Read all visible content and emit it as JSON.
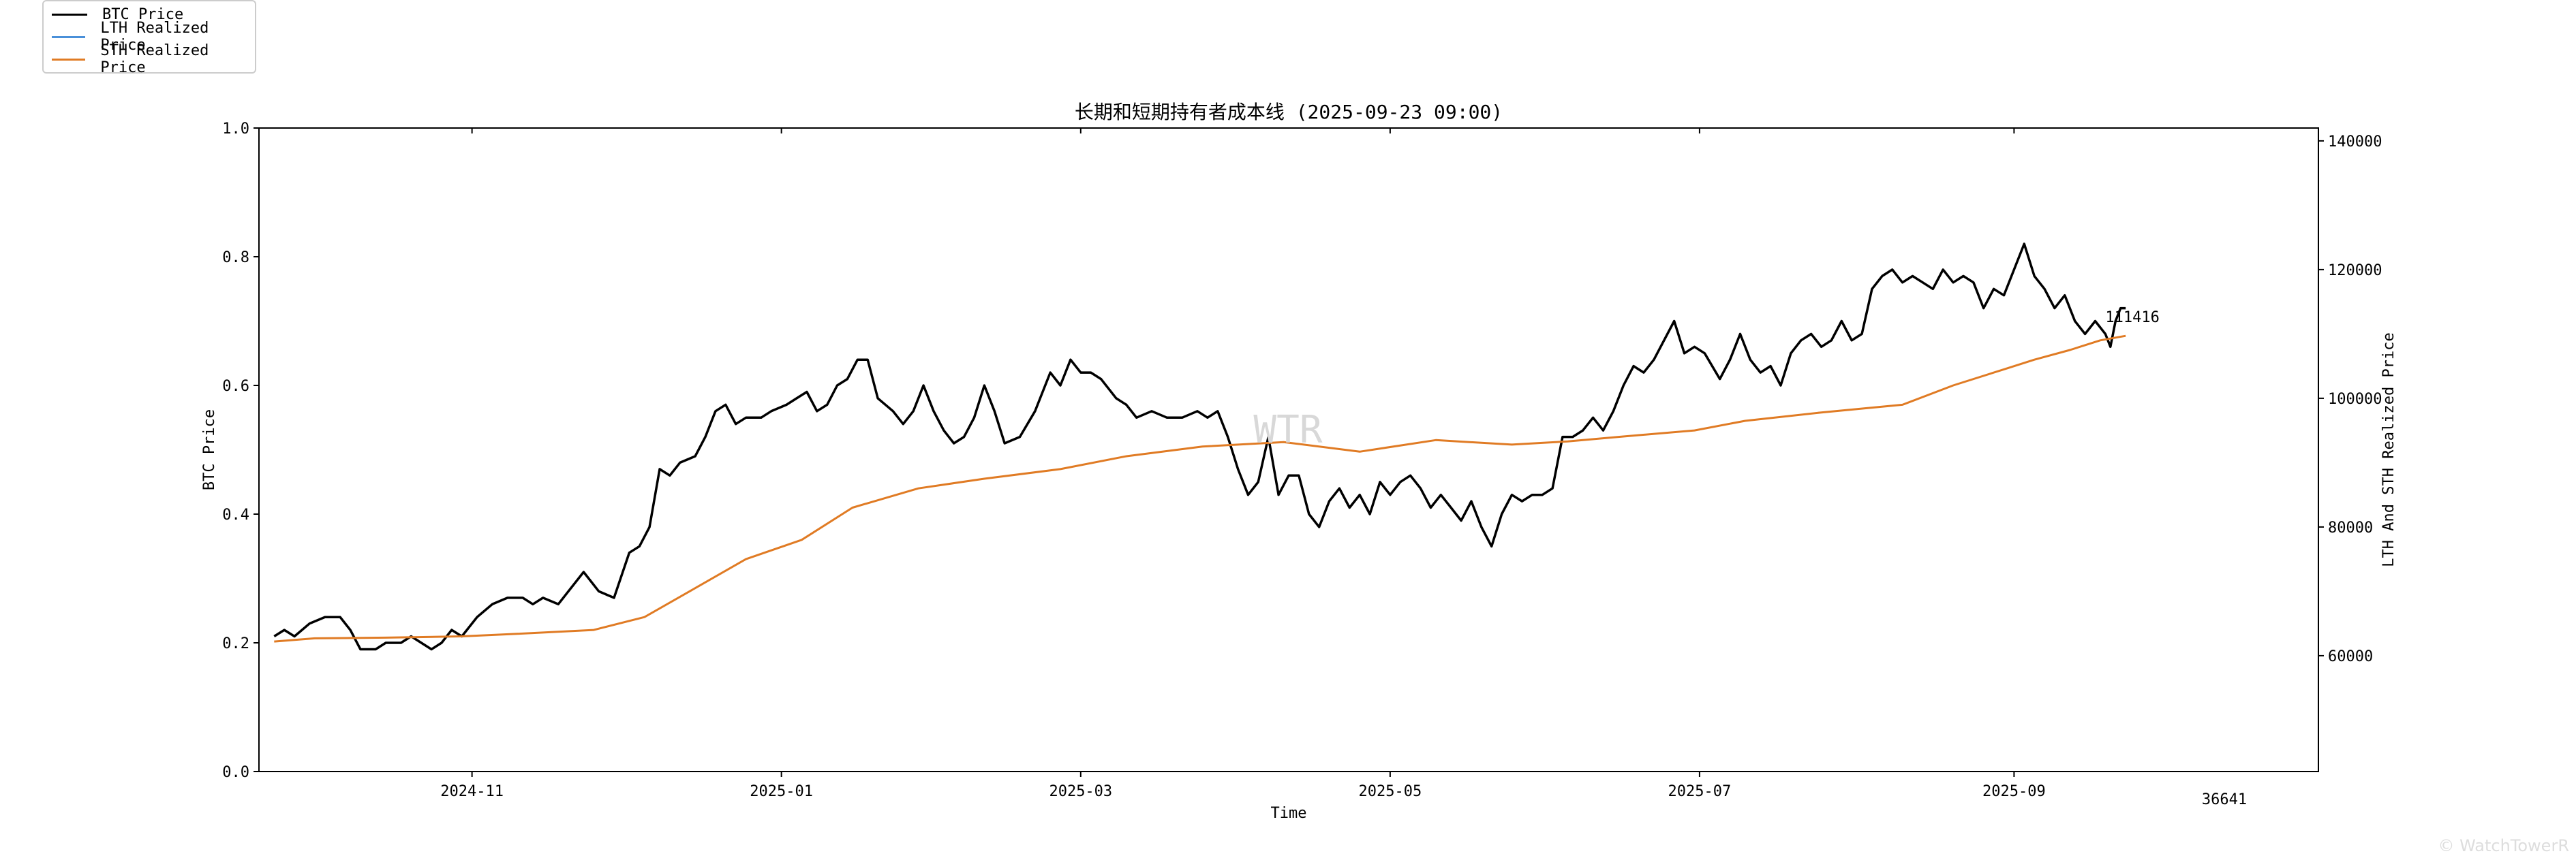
{
  "legend": {
    "items": [
      {
        "label": "BTC Price",
        "color": "#000000"
      },
      {
        "label": "LTH Realized Price",
        "color": "#4a90d9"
      },
      {
        "label": "STH Realized Price",
        "color": "#e07b24"
      }
    ]
  },
  "watermark": "WTR",
  "footer_mark": "© WatchTowerR",
  "chart_data": {
    "type": "line",
    "title": "长期和短期持有者成本线 (2025-09-23 09:00)",
    "xlabel": "Time",
    "ylabel_left": "BTC Price",
    "ylabel_right": "LTH And STH Realized Price",
    "x_range": [
      "2024-09-20",
      "2025-10-31"
    ],
    "x_ticks": [
      {
        "date": "2024-11-01",
        "label": "2024-11"
      },
      {
        "date": "2025-01-01",
        "label": "2025-01"
      },
      {
        "date": "2025-03-01",
        "label": "2025-03"
      },
      {
        "date": "2025-05-01",
        "label": "2025-05"
      },
      {
        "date": "2025-07-01",
        "label": "2025-07"
      },
      {
        "date": "2025-09-01",
        "label": "2025-09"
      }
    ],
    "y_left": {
      "range": [
        0.0,
        1.0
      ],
      "ticks": [
        "0.0",
        "0.2",
        "0.4",
        "0.6",
        "0.8",
        "1.0"
      ]
    },
    "y_right": {
      "range": [
        42000,
        142000
      ],
      "ticks": [
        60000,
        80000,
        100000,
        120000,
        140000
      ]
    },
    "grid": false,
    "legend_position": "outside-top-left",
    "annotations": [
      {
        "text": "111416",
        "x": "2025-09-23",
        "y": 111416,
        "axis": "right"
      },
      {
        "text": "36641",
        "position": "below-right-of-x-axis"
      }
    ],
    "series": [
      {
        "name": "BTC Price",
        "axis": "left",
        "color": "#000000",
        "points": [
          [
            "2024-09-23",
            0.21
          ],
          [
            "2024-09-25",
            0.22
          ],
          [
            "2024-09-27",
            0.21
          ],
          [
            "2024-09-30",
            0.23
          ],
          [
            "2024-10-03",
            0.24
          ],
          [
            "2024-10-06",
            0.24
          ],
          [
            "2024-10-08",
            0.22
          ],
          [
            "2024-10-10",
            0.19
          ],
          [
            "2024-10-13",
            0.19
          ],
          [
            "2024-10-15",
            0.2
          ],
          [
            "2024-10-18",
            0.2
          ],
          [
            "2024-10-20",
            0.21
          ],
          [
            "2024-10-22",
            0.2
          ],
          [
            "2024-10-24",
            0.19
          ],
          [
            "2024-10-26",
            0.2
          ],
          [
            "2024-10-28",
            0.22
          ],
          [
            "2024-10-30",
            0.21
          ],
          [
            "2024-11-02",
            0.24
          ],
          [
            "2024-11-05",
            0.26
          ],
          [
            "2024-11-08",
            0.27
          ],
          [
            "2024-11-11",
            0.27
          ],
          [
            "2024-11-13",
            0.26
          ],
          [
            "2024-11-15",
            0.27
          ],
          [
            "2024-11-18",
            0.26
          ],
          [
            "2024-11-20",
            0.28
          ],
          [
            "2024-11-23",
            0.31
          ],
          [
            "2024-11-26",
            0.28
          ],
          [
            "2024-11-29",
            0.27
          ],
          [
            "2024-12-02",
            0.34
          ],
          [
            "2024-12-04",
            0.35
          ],
          [
            "2024-12-06",
            0.38
          ],
          [
            "2024-12-08",
            0.47
          ],
          [
            "2024-12-10",
            0.46
          ],
          [
            "2024-12-12",
            0.48
          ],
          [
            "2024-12-15",
            0.49
          ],
          [
            "2024-12-17",
            0.52
          ],
          [
            "2024-12-19",
            0.56
          ],
          [
            "2024-12-21",
            0.57
          ],
          [
            "2024-12-23",
            0.54
          ],
          [
            "2024-12-25",
            0.55
          ],
          [
            "2024-12-28",
            0.55
          ],
          [
            "2024-12-30",
            0.56
          ],
          [
            "2025-01-02",
            0.57
          ],
          [
            "2025-01-04",
            0.58
          ],
          [
            "2025-01-06",
            0.59
          ],
          [
            "2025-01-08",
            0.56
          ],
          [
            "2025-01-10",
            0.57
          ],
          [
            "2025-01-12",
            0.6
          ],
          [
            "2025-01-14",
            0.61
          ],
          [
            "2025-01-16",
            0.64
          ],
          [
            "2025-01-18",
            0.64
          ],
          [
            "2025-01-20",
            0.58
          ],
          [
            "2025-01-23",
            0.56
          ],
          [
            "2025-01-25",
            0.54
          ],
          [
            "2025-01-27",
            0.56
          ],
          [
            "2025-01-29",
            0.6
          ],
          [
            "2025-01-31",
            0.56
          ],
          [
            "2025-02-02",
            0.53
          ],
          [
            "2025-02-04",
            0.51
          ],
          [
            "2025-02-06",
            0.52
          ],
          [
            "2025-02-08",
            0.55
          ],
          [
            "2025-02-10",
            0.6
          ],
          [
            "2025-02-12",
            0.56
          ],
          [
            "2025-02-14",
            0.51
          ],
          [
            "2025-02-17",
            0.52
          ],
          [
            "2025-02-20",
            0.56
          ],
          [
            "2025-02-23",
            0.62
          ],
          [
            "2025-02-25",
            0.6
          ],
          [
            "2025-02-27",
            0.64
          ],
          [
            "2025-03-01",
            0.62
          ],
          [
            "2025-03-03",
            0.62
          ],
          [
            "2025-03-05",
            0.61
          ],
          [
            "2025-03-08",
            0.58
          ],
          [
            "2025-03-10",
            0.57
          ],
          [
            "2025-03-12",
            0.55
          ],
          [
            "2025-03-15",
            0.56
          ],
          [
            "2025-03-18",
            0.55
          ],
          [
            "2025-03-21",
            0.55
          ],
          [
            "2025-03-24",
            0.56
          ],
          [
            "2025-03-26",
            0.55
          ],
          [
            "2025-03-28",
            0.56
          ],
          [
            "2025-03-30",
            0.52
          ],
          [
            "2025-04-01",
            0.47
          ],
          [
            "2025-04-03",
            0.43
          ],
          [
            "2025-04-05",
            0.45
          ],
          [
            "2025-04-07",
            0.52
          ],
          [
            "2025-04-09",
            0.43
          ],
          [
            "2025-04-11",
            0.46
          ],
          [
            "2025-04-13",
            0.46
          ],
          [
            "2025-04-15",
            0.4
          ],
          [
            "2025-04-17",
            0.38
          ],
          [
            "2025-04-19",
            0.42
          ],
          [
            "2025-04-21",
            0.44
          ],
          [
            "2025-04-23",
            0.41
          ],
          [
            "2025-04-25",
            0.43
          ],
          [
            "2025-04-27",
            0.4
          ],
          [
            "2025-04-29",
            0.45
          ],
          [
            "2025-05-01",
            0.43
          ],
          [
            "2025-05-03",
            0.45
          ],
          [
            "2025-05-05",
            0.46
          ],
          [
            "2025-05-07",
            0.44
          ],
          [
            "2025-05-09",
            0.41
          ],
          [
            "2025-05-11",
            0.43
          ],
          [
            "2025-05-13",
            0.41
          ],
          [
            "2025-05-15",
            0.39
          ],
          [
            "2025-05-17",
            0.42
          ],
          [
            "2025-05-19",
            0.38
          ],
          [
            "2025-05-21",
            0.35
          ],
          [
            "2025-05-23",
            0.4
          ],
          [
            "2025-05-25",
            0.43
          ],
          [
            "2025-05-27",
            0.42
          ],
          [
            "2025-05-29",
            0.43
          ],
          [
            "2025-05-31",
            0.43
          ],
          [
            "2025-06-02",
            0.44
          ],
          [
            "2025-06-04",
            0.52
          ],
          [
            "2025-06-06",
            0.52
          ],
          [
            "2025-06-08",
            0.53
          ],
          [
            "2025-06-10",
            0.55
          ],
          [
            "2025-06-12",
            0.53
          ],
          [
            "2025-06-14",
            0.56
          ],
          [
            "2025-06-16",
            0.6
          ],
          [
            "2025-06-18",
            0.63
          ],
          [
            "2025-06-20",
            0.62
          ],
          [
            "2025-06-22",
            0.64
          ],
          [
            "2025-06-24",
            0.67
          ],
          [
            "2025-06-26",
            0.7
          ],
          [
            "2025-06-28",
            0.65
          ],
          [
            "2025-06-30",
            0.66
          ],
          [
            "2025-07-02",
            0.65
          ],
          [
            "2025-07-05",
            0.61
          ],
          [
            "2025-07-07",
            0.64
          ],
          [
            "2025-07-09",
            0.68
          ],
          [
            "2025-07-11",
            0.64
          ],
          [
            "2025-07-13",
            0.62
          ],
          [
            "2025-07-15",
            0.63
          ],
          [
            "2025-07-17",
            0.6
          ],
          [
            "2025-07-19",
            0.65
          ],
          [
            "2025-07-21",
            0.67
          ],
          [
            "2025-07-23",
            0.68
          ],
          [
            "2025-07-25",
            0.66
          ],
          [
            "2025-07-27",
            0.67
          ],
          [
            "2025-07-29",
            0.7
          ],
          [
            "2025-07-31",
            0.67
          ],
          [
            "2025-08-02",
            0.68
          ],
          [
            "2025-08-04",
            0.75
          ],
          [
            "2025-08-06",
            0.77
          ],
          [
            "2025-08-08",
            0.78
          ],
          [
            "2025-08-10",
            0.76
          ],
          [
            "2025-08-12",
            0.77
          ],
          [
            "2025-08-14",
            0.76
          ],
          [
            "2025-08-16",
            0.75
          ],
          [
            "2025-08-18",
            0.78
          ],
          [
            "2025-08-20",
            0.76
          ],
          [
            "2025-08-22",
            0.77
          ],
          [
            "2025-08-24",
            0.76
          ],
          [
            "2025-08-26",
            0.72
          ],
          [
            "2025-08-28",
            0.75
          ],
          [
            "2025-08-30",
            0.74
          ],
          [
            "2025-09-01",
            0.78
          ],
          [
            "2025-09-03",
            0.82
          ],
          [
            "2025-09-05",
            0.77
          ],
          [
            "2025-09-07",
            0.75
          ],
          [
            "2025-09-09",
            0.72
          ],
          [
            "2025-09-11",
            0.74
          ],
          [
            "2025-09-13",
            0.7
          ],
          [
            "2025-09-15",
            0.68
          ],
          [
            "2025-09-17",
            0.7
          ],
          [
            "2025-09-19",
            0.68
          ],
          [
            "2025-09-20",
            0.66
          ],
          [
            "2025-09-21",
            0.7
          ],
          [
            "2025-09-22",
            0.72
          ],
          [
            "2025-09-23",
            0.72
          ]
        ]
      },
      {
        "name": "STH Realized Price",
        "axis": "right",
        "color": "#e07b24",
        "points": [
          [
            "2024-09-23",
            62200
          ],
          [
            "2024-10-01",
            62700
          ],
          [
            "2024-10-15",
            62800
          ],
          [
            "2024-10-30",
            63000
          ],
          [
            "2024-11-10",
            63400
          ],
          [
            "2024-11-25",
            64000
          ],
          [
            "2024-12-05",
            66000
          ],
          [
            "2024-12-15",
            70500
          ],
          [
            "2024-12-25",
            75000
          ],
          [
            "2025-01-05",
            78000
          ],
          [
            "2025-01-15",
            83000
          ],
          [
            "2025-01-28",
            86000
          ],
          [
            "2025-02-10",
            87500
          ],
          [
            "2025-02-25",
            89000
          ],
          [
            "2025-03-10",
            91000
          ],
          [
            "2025-03-25",
            92500
          ],
          [
            "2025-04-10",
            93200
          ],
          [
            "2025-04-25",
            91700
          ],
          [
            "2025-05-10",
            93500
          ],
          [
            "2025-05-25",
            92800
          ],
          [
            "2025-06-05",
            93300
          ],
          [
            "2025-06-15",
            94000
          ],
          [
            "2025-06-30",
            95000
          ],
          [
            "2025-07-10",
            96500
          ],
          [
            "2025-07-25",
            97800
          ],
          [
            "2025-08-10",
            99000
          ],
          [
            "2025-08-20",
            102000
          ],
          [
            "2025-08-30",
            104500
          ],
          [
            "2025-09-05",
            106000
          ],
          [
            "2025-09-12",
            107500
          ],
          [
            "2025-09-18",
            109000
          ],
          [
            "2025-09-23",
            109700
          ]
        ]
      }
    ]
  }
}
